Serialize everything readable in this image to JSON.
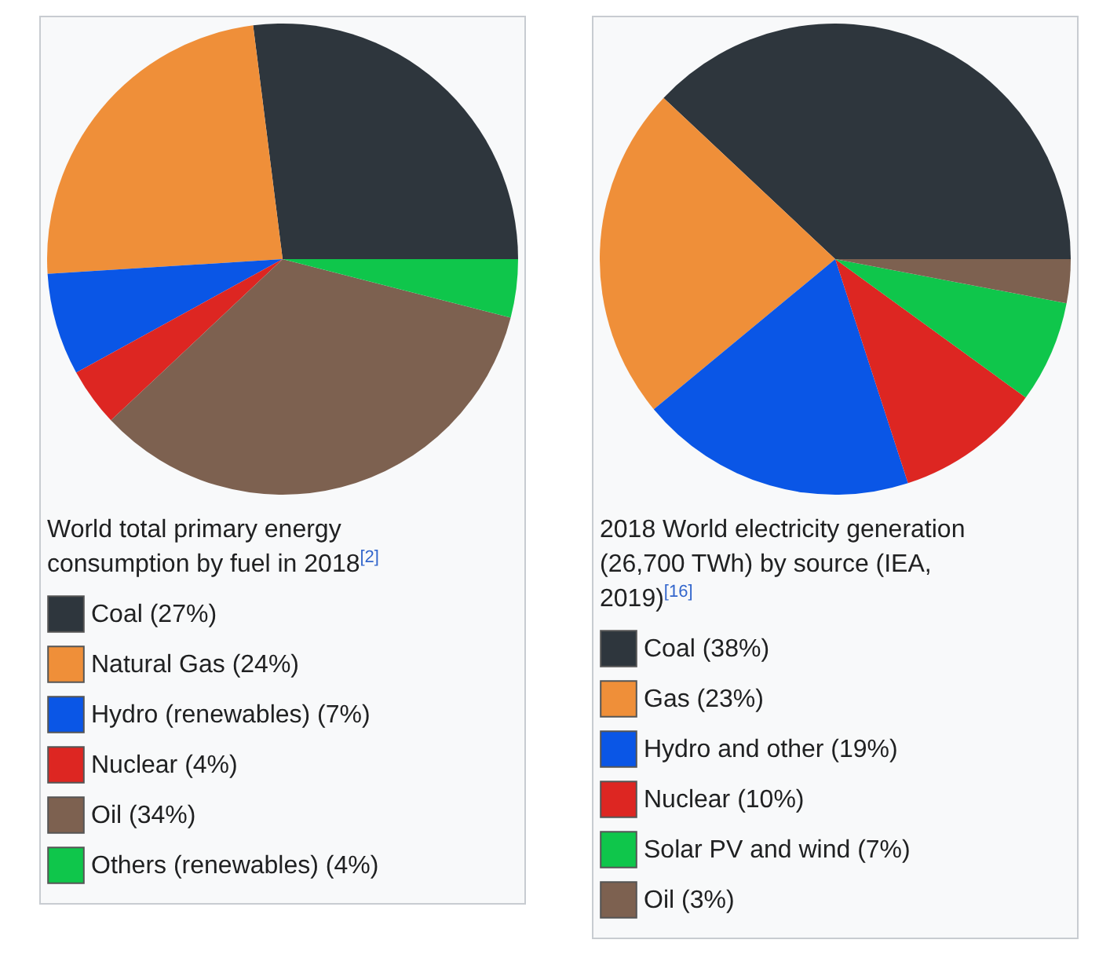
{
  "chart_data": [
    {
      "type": "pie",
      "title": "World total primary energy consumption by fuel in 2018$^{[2]}$",
      "categories": [
        "Coal (27%)",
        "Natural Gas (24%)",
        "Hydro (renewables) (7%)",
        "Nuclear (4%)",
        "Oil (34%)",
        "Others (renewables) (4%)"
      ],
      "values": [
        27,
        24,
        7,
        4,
        34,
        4
      ],
      "colors": [
        "#2e363d",
        "#ef8f39",
        "#0a56e6",
        "#dd2622",
        "#7d6150",
        "#0fc64b"
      ],
      "legend": "bottom"
    },
    {
      "type": "pie",
      "title": "2018 World electricity generation (26,700 TWh) by source (IEA, 2019)$^{[16]}$",
      "categories": [
        "Coal (38%)",
        "Gas (23%)",
        "Hydro and other (19%)",
        "Nuclear (10%)",
        "Solar PV and wind (7%)",
        "Oil (3%)"
      ],
      "values": [
        38,
        23,
        19,
        10,
        7,
        3
      ],
      "colors": [
        "#2e363d",
        "#ef8f39",
        "#0a56e6",
        "#dd2622",
        "#0fc64b",
        "#7d6150"
      ],
      "legend": "bottom"
    }
  ]
}
